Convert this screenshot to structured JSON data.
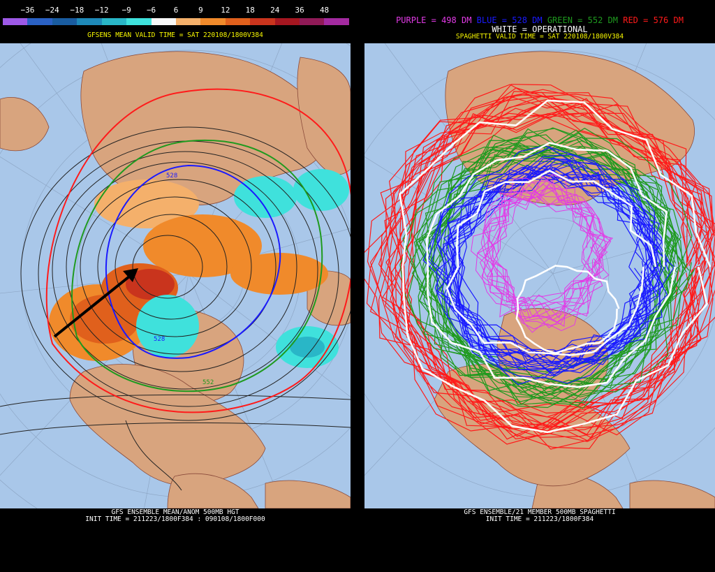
{
  "left": {
    "colorbar": {
      "ticks": [
        "−36",
        "−24",
        "−18",
        "−12",
        "−9",
        "−6",
        "6",
        "9",
        "12",
        "18",
        "24",
        "36",
        "48"
      ],
      "colors": [
        "#9d59e6",
        "#2a61c4",
        "#195ca0",
        "#1e89b8",
        "#29b6c7",
        "#3fe1dc",
        "#f7f7f7",
        "#f4b06b",
        "#f08a2b",
        "#e0601c",
        "#c9341d",
        "#a51620",
        "#901a57",
        "#a32aa0"
      ]
    },
    "valid_title": "GFSENS MEAN VALID TIME = SAT 220108/1800V384",
    "contour_labels": [
      "528",
      "528",
      "552"
    ],
    "footer_line1": "GFS ENSEMBLE MEAN/ANOM 500MB HGT",
    "footer_line2": "INIT TIME = 211223/1800F384 : 090108/1800F000"
  },
  "right": {
    "legend": {
      "purple": "PURPLE = 498 DM",
      "blue": "BLUE = 528 DM",
      "green": "GREEN = 552 DM",
      "red": "RED = 576 DM",
      "white": "WHITE = OPERATIONAL"
    },
    "valid_title": "SPAGHETTI VALID TIME = SAT 220108/1800V384",
    "footer_line1": "GFS ENSEMBLE/21 MEMBER 500MB SPAGHETTI",
    "footer_line2": "INIT TIME = 211223/1800F384"
  },
  "colors": {
    "ocean": "#a9c7e9",
    "land": "#d8a47e",
    "title_yellow": "#f7f700",
    "purple": "#e23ae6",
    "blue": "#1a1aff",
    "green": "#1f9a1f",
    "red": "#ff1a1a",
    "white": "#ffffff"
  }
}
